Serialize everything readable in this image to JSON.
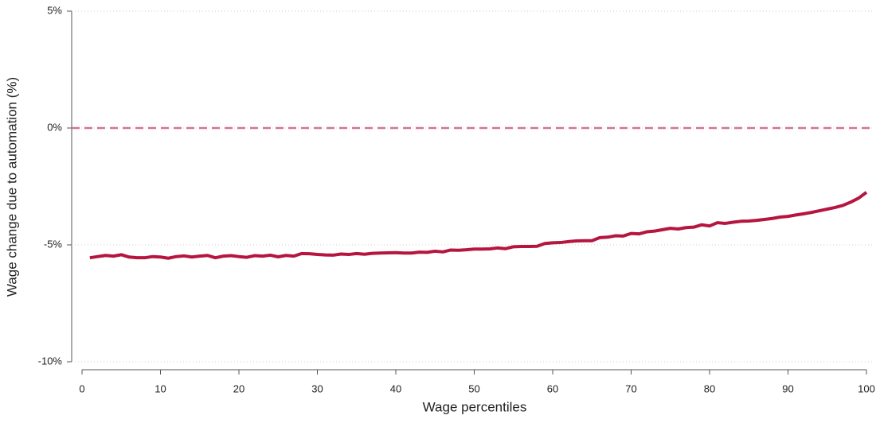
{
  "chart_data": {
    "type": "line",
    "xlabel": "Wage percentiles",
    "ylabel": "Wage change due to automation (%)",
    "x": [
      1,
      2,
      3,
      4,
      5,
      6,
      7,
      8,
      9,
      10,
      11,
      12,
      13,
      14,
      15,
      16,
      17,
      18,
      19,
      20,
      21,
      22,
      23,
      24,
      25,
      26,
      27,
      28,
      29,
      30,
      31,
      32,
      33,
      34,
      35,
      36,
      37,
      38,
      39,
      40,
      41,
      42,
      43,
      44,
      45,
      46,
      47,
      48,
      49,
      50,
      51,
      52,
      53,
      54,
      55,
      56,
      57,
      58,
      59,
      60,
      61,
      62,
      63,
      64,
      65,
      66,
      67,
      68,
      69,
      70,
      71,
      72,
      73,
      74,
      75,
      76,
      77,
      78,
      79,
      80,
      81,
      82,
      83,
      84,
      85,
      86,
      87,
      88,
      89,
      90,
      91,
      92,
      93,
      94,
      95,
      96,
      97,
      98,
      99,
      100
    ],
    "values": [
      -5.55,
      -5.5,
      -5.45,
      -5.48,
      -5.42,
      -5.52,
      -5.55,
      -5.55,
      -5.5,
      -5.52,
      -5.57,
      -5.5,
      -5.47,
      -5.52,
      -5.48,
      -5.45,
      -5.55,
      -5.48,
      -5.46,
      -5.5,
      -5.53,
      -5.46,
      -5.48,
      -5.44,
      -5.51,
      -5.45,
      -5.48,
      -5.37,
      -5.38,
      -5.41,
      -5.43,
      -5.44,
      -5.39,
      -5.41,
      -5.37,
      -5.4,
      -5.36,
      -5.35,
      -5.34,
      -5.33,
      -5.35,
      -5.35,
      -5.31,
      -5.32,
      -5.27,
      -5.3,
      -5.22,
      -5.23,
      -5.21,
      -5.18,
      -5.18,
      -5.17,
      -5.13,
      -5.16,
      -5.08,
      -5.07,
      -5.07,
      -5.06,
      -4.94,
      -4.91,
      -4.9,
      -4.86,
      -4.83,
      -4.82,
      -4.82,
      -4.69,
      -4.67,
      -4.61,
      -4.62,
      -4.51,
      -4.53,
      -4.44,
      -4.41,
      -4.35,
      -4.29,
      -4.32,
      -4.26,
      -4.24,
      -4.14,
      -4.19,
      -4.05,
      -4.08,
      -4.03,
      -3.99,
      -3.98,
      -3.95,
      -3.91,
      -3.87,
      -3.81,
      -3.78,
      -3.72,
      -3.67,
      -3.61,
      -3.54,
      -3.47,
      -3.4,
      -3.31,
      -3.17,
      -3.0,
      -2.75
    ],
    "color": "#b5153f",
    "xlim": [
      0,
      100
    ],
    "xticks": [
      0,
      10,
      20,
      30,
      40,
      50,
      60,
      70,
      80,
      90,
      100
    ],
    "ylim": [
      -10,
      5
    ],
    "yticks": [
      {
        "value": -10,
        "label": "-10%"
      },
      {
        "value": -5,
        "label": "-5%"
      },
      {
        "value": 0,
        "label": "0%"
      },
      {
        "value": 5,
        "label": "5%"
      }
    ],
    "grid": true,
    "hline": 0,
    "hline_color": "#d2739a"
  }
}
